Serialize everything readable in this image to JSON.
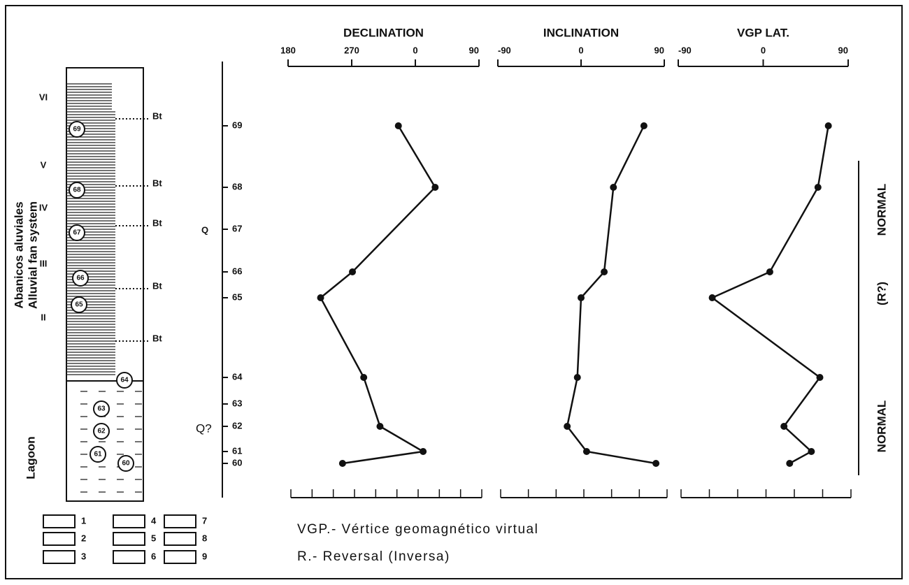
{
  "chart_data": [
    {
      "type": "line",
      "title": "DECLINATION",
      "categories": [
        "69",
        "68",
        "66",
        "65",
        "64",
        "62",
        "61",
        "60"
      ],
      "values": [
        336,
        388,
        271,
        226,
        287,
        310,
        371,
        257
      ],
      "color": "#111",
      "xlim": [
        180,
        450
      ],
      "xticks": [
        180,
        270,
        {
          "value": 360,
          "label": "0"
        },
        {
          "value": 450,
          "label": "90"
        }
      ],
      "minor_xticks": [
        180,
        210,
        240,
        270,
        300,
        330,
        360,
        390,
        420,
        450
      ]
    },
    {
      "type": "line",
      "title": "INCLINATION",
      "values": [
        68,
        35,
        25,
        0,
        -4,
        -15,
        6,
        81
      ],
      "color": "#111",
      "xlim": [
        -90,
        90
      ],
      "xticks": [
        -90,
        0,
        90
      ],
      "minor_xticks": [
        -90,
        -60,
        -30,
        0,
        30,
        60,
        90
      ]
    },
    {
      "type": "line",
      "title": "VGP LAT.",
      "values": [
        69,
        58,
        7,
        -54,
        60,
        22,
        51,
        28
      ],
      "color": "#111",
      "xlim": [
        -90,
        90
      ],
      "xticks": [
        -90,
        0,
        90
      ],
      "minor_xticks": [
        -90,
        -60,
        -30,
        0,
        30,
        60,
        90
      ]
    }
  ],
  "unsampled_levels": [
    "67",
    "63"
  ],
  "polarity": [
    "NORMAL",
    "(R?)",
    "NORMAL"
  ],
  "markers": [
    "Q",
    "Q?"
  ],
  "column": {
    "units": [
      "VI",
      "V",
      "IV",
      "III",
      "II"
    ],
    "axis_title": [
      "Abanicos aluviales",
      "Alluvial fan system"
    ],
    "lagoon": "Lagoon",
    "bt": [
      "Bt",
      "Bt",
      "Bt",
      "Bt",
      "Bt"
    ],
    "samples": [
      "69",
      "68",
      "67",
      "66",
      "65",
      "64",
      "63",
      "62",
      "61",
      "60"
    ]
  },
  "legend": [
    "1",
    "2",
    "3",
    "4",
    "5",
    "6",
    "7",
    "8",
    "9"
  ],
  "notes": [
    "VGP.- Vértice geomagnético virtual",
    "R.- Reversal (Inversa)"
  ]
}
